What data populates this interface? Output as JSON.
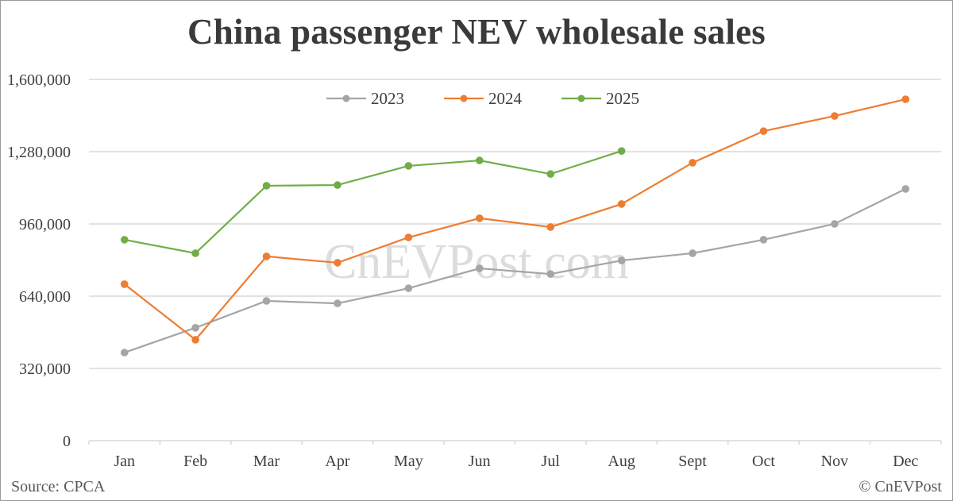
{
  "chart_data": {
    "type": "line",
    "title": "China passenger NEV wholesale sales",
    "xlabel": "",
    "ylabel": "",
    "categories": [
      "Jan",
      "Feb",
      "Mar",
      "Apr",
      "May",
      "Jun",
      "Jul",
      "Aug",
      "Sept",
      "Oct",
      "Nov",
      "Dec"
    ],
    "yticks": [
      0,
      320000,
      640000,
      960000,
      1280000,
      1600000
    ],
    "ytick_labels": [
      "0",
      "320,000",
      "640,000",
      "960,000",
      "1,280,000",
      "1,600,000"
    ],
    "ylim": [
      0,
      1600000
    ],
    "grid": true,
    "legend_position": "top",
    "series": [
      {
        "name": "2023",
        "color": "#a5a5a5",
        "values": [
          390000,
          500000,
          619000,
          608000,
          675000,
          763000,
          738000,
          798000,
          830000,
          890000,
          960000,
          1115000
        ]
      },
      {
        "name": "2024",
        "color": "#ed7d31",
        "values": [
          693000,
          447000,
          816000,
          788000,
          900000,
          985000,
          946000,
          1048000,
          1231000,
          1371000,
          1438000,
          1512000
        ]
      },
      {
        "name": "2025",
        "color": "#70ad47",
        "values": [
          890000,
          830000,
          1129000,
          1132000,
          1217000,
          1241000,
          1181000,
          1283000
        ]
      }
    ]
  },
  "title": "China passenger NEV wholesale sales",
  "watermark": "CnEVPost.com",
  "footer": {
    "source": "Source: CPCA",
    "credit": "© CnEVPost"
  }
}
